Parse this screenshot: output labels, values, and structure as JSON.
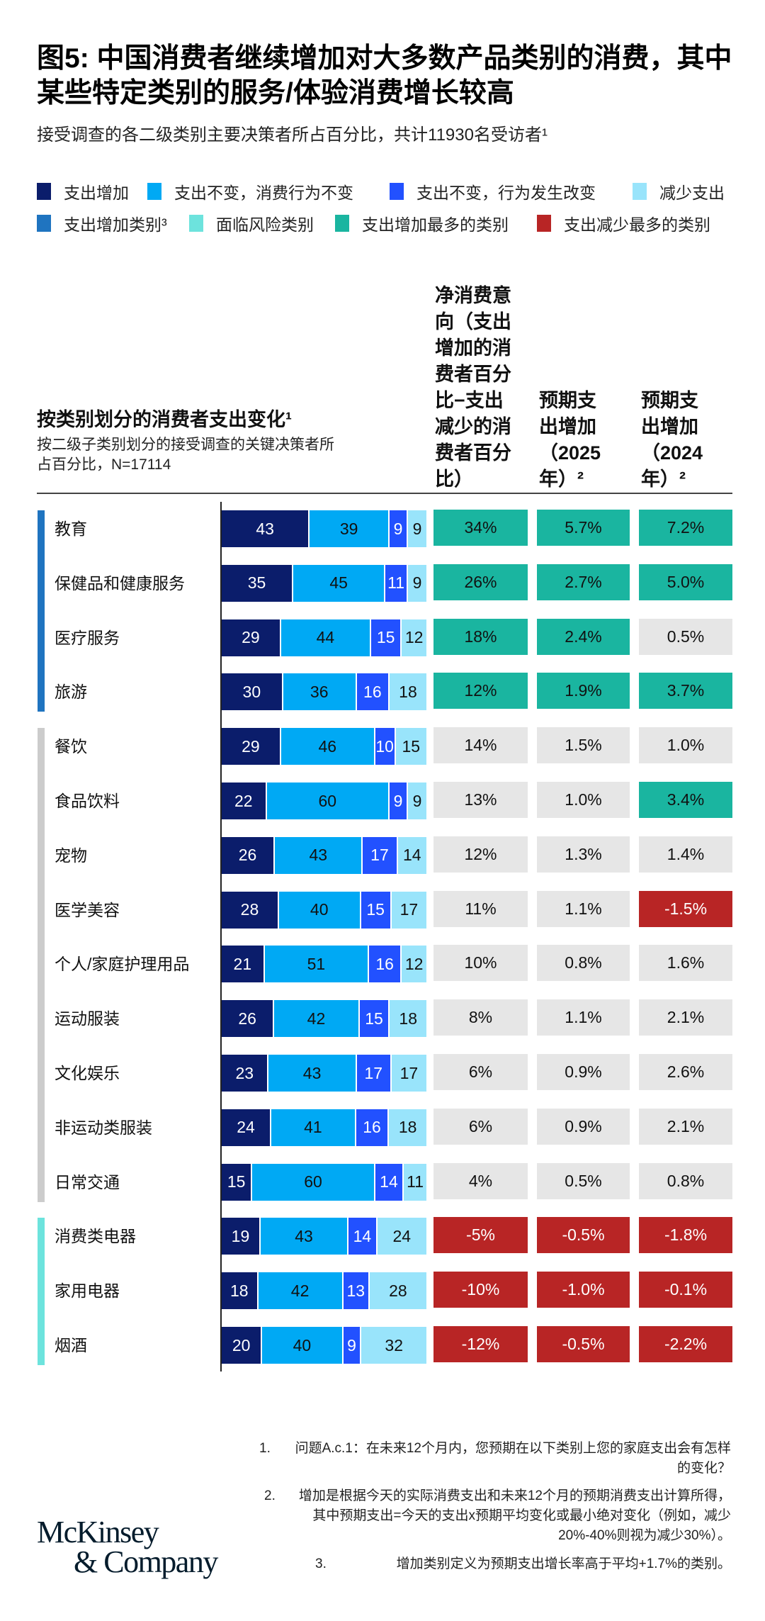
{
  "title": "图5: 中国消费者继续增加对大多数产品类别的消费，其中某些特定类别的服务/体验消费增长较高",
  "subtitle": "接受调查的各二级类别主要决策者所占百分比，共计11930名受访者¹",
  "legend": [
    {
      "label": "支出增加",
      "color": "#0b1d6b"
    },
    {
      "label": "支出不变，消费行为不变",
      "color": "#00a9f4"
    },
    {
      "label": "支出不变，行为发生改变",
      "color": "#2251ff"
    },
    {
      "label": "减少支出",
      "color": "#99e4fb"
    },
    {
      "label": "支出增加类别³",
      "color": "#1f74c0"
    },
    {
      "label": "面临风险类别",
      "color": "#6de3dd"
    },
    {
      "label": "支出增加最多的类别",
      "color": "#1ab5a0"
    },
    {
      "label": "支出减少最多的类别",
      "color": "#b82525"
    }
  ],
  "left_header": {
    "title": "按类别划分的消费者支出变化¹",
    "subtitle": "按二级子类别划分的接受调查的关键决策者所占百分比，N=17114"
  },
  "column_headers": [
    "净消费意\n向（支出\n增加的消\n费者百分\n比−支出\n减少的消\n费者百分\n比）",
    "预期支\n出增加\n（2025\n年）²",
    "预期支\n出增加\n（2024\n年）²"
  ],
  "colors": {
    "neutral_cell": "#e6e6e6",
    "neutral_strip": "#cccccc",
    "up": "#1ab5a0",
    "down": "#b82525"
  },
  "chart_data": {
    "type": "bar",
    "stacked": true,
    "orientation": "horizontal",
    "series_names": [
      "支出增加",
      "支出不变，消费行为不变",
      "支出不变，行为发生改变",
      "减少支出"
    ],
    "groups": [
      {
        "type": "支出增加类别",
        "strip_color": "#1f74c0"
      },
      {
        "type": "neutral",
        "strip_color": "#cccccc"
      },
      {
        "type": "面临风险类别",
        "strip_color": "#6de3dd"
      }
    ],
    "rows": [
      {
        "category": "教育",
        "group": 0,
        "values": [
          43,
          39,
          9,
          9
        ],
        "net": "34%",
        "exp2025": "5.7%",
        "exp2024": "7.2%",
        "status": [
          "up",
          "up",
          "up"
        ]
      },
      {
        "category": "保健品和健康服务",
        "group": 0,
        "values": [
          35,
          45,
          11,
          9
        ],
        "net": "26%",
        "exp2025": "2.7%",
        "exp2024": "5.0%",
        "status": [
          "up",
          "up",
          "up"
        ]
      },
      {
        "category": "医疗服务",
        "group": 0,
        "values": [
          29,
          44,
          15,
          12
        ],
        "net": "18%",
        "exp2025": "2.4%",
        "exp2024": "0.5%",
        "status": [
          "up",
          "up",
          "neutral"
        ]
      },
      {
        "category": "旅游",
        "group": 0,
        "values": [
          30,
          36,
          16,
          18
        ],
        "net": "12%",
        "exp2025": "1.9%",
        "exp2024": "3.7%",
        "status": [
          "up",
          "up",
          "up"
        ]
      },
      {
        "category": "餐饮",
        "group": 1,
        "values": [
          29,
          46,
          10,
          15
        ],
        "net": "14%",
        "exp2025": "1.5%",
        "exp2024": "1.0%",
        "status": [
          "neutral",
          "neutral",
          "neutral"
        ]
      },
      {
        "category": "食品饮料",
        "group": 1,
        "values": [
          22,
          60,
          9,
          9
        ],
        "net": "13%",
        "exp2025": "1.0%",
        "exp2024": "3.4%",
        "status": [
          "neutral",
          "neutral",
          "up"
        ]
      },
      {
        "category": "宠物",
        "group": 1,
        "values": [
          26,
          43,
          17,
          14
        ],
        "net": "12%",
        "exp2025": "1.3%",
        "exp2024": "1.4%",
        "status": [
          "neutral",
          "neutral",
          "neutral"
        ]
      },
      {
        "category": "医学美容",
        "group": 1,
        "values": [
          28,
          40,
          15,
          17
        ],
        "net": "11%",
        "exp2025": "1.1%",
        "exp2024": "-1.5%",
        "status": [
          "neutral",
          "neutral",
          "down"
        ]
      },
      {
        "category": "个人/家庭护理用品",
        "group": 1,
        "values": [
          21,
          51,
          16,
          12
        ],
        "net": "10%",
        "exp2025": "0.8%",
        "exp2024": "1.6%",
        "status": [
          "neutral",
          "neutral",
          "neutral"
        ]
      },
      {
        "category": "运动服装",
        "group": 1,
        "values": [
          26,
          42,
          15,
          18
        ],
        "net": "8%",
        "exp2025": "1.1%",
        "exp2024": "2.1%",
        "status": [
          "neutral",
          "neutral",
          "neutral"
        ]
      },
      {
        "category": "文化娱乐",
        "group": 1,
        "values": [
          23,
          43,
          17,
          17
        ],
        "net": "6%",
        "exp2025": "0.9%",
        "exp2024": "2.6%",
        "status": [
          "neutral",
          "neutral",
          "neutral"
        ]
      },
      {
        "category": "非运动类服装",
        "group": 1,
        "values": [
          24,
          41,
          16,
          18
        ],
        "net": "6%",
        "exp2025": "0.9%",
        "exp2024": "2.1%",
        "status": [
          "neutral",
          "neutral",
          "neutral"
        ]
      },
      {
        "category": "日常交通",
        "group": 1,
        "values": [
          15,
          60,
          14,
          11
        ],
        "net": "4%",
        "exp2025": "0.5%",
        "exp2024": "0.8%",
        "status": [
          "neutral",
          "neutral",
          "neutral"
        ]
      },
      {
        "category": "消费类电器",
        "group": 2,
        "values": [
          19,
          43,
          14,
          24
        ],
        "net": "-5%",
        "exp2025": "-0.5%",
        "exp2024": "-1.8%",
        "status": [
          "down",
          "down",
          "down"
        ]
      },
      {
        "category": "家用电器",
        "group": 2,
        "values": [
          18,
          42,
          13,
          28
        ],
        "net": "-10%",
        "exp2025": "-1.0%",
        "exp2024": "-0.1%",
        "status": [
          "down",
          "down",
          "down"
        ]
      },
      {
        "category": "烟酒",
        "group": 2,
        "values": [
          20,
          40,
          9,
          32
        ],
        "net": "-12%",
        "exp2025": "-0.5%",
        "exp2024": "-2.2%",
        "status": [
          "down",
          "down",
          "down"
        ]
      }
    ]
  },
  "footnotes": [
    {
      "num": "1.",
      "text": "问题A.c.1：在未来12个月内，您预期在以下类别上您的家庭支出会有怎样的变化？"
    },
    {
      "num": "2.",
      "text": "增加是根据今天的实际消费支出和未来12个月的预期消费支出计算所得，其中预期支出=今天的支出x预期平均变化或最小绝对变化（例如，减少20%-40%则视为减少30%）。"
    },
    {
      "num": "3.",
      "text": "增加类别定义为预期支出增长率高于平均+1.7%的类别。"
    }
  ],
  "logo": {
    "line1": "McKinsey",
    "line2": "& Company"
  }
}
